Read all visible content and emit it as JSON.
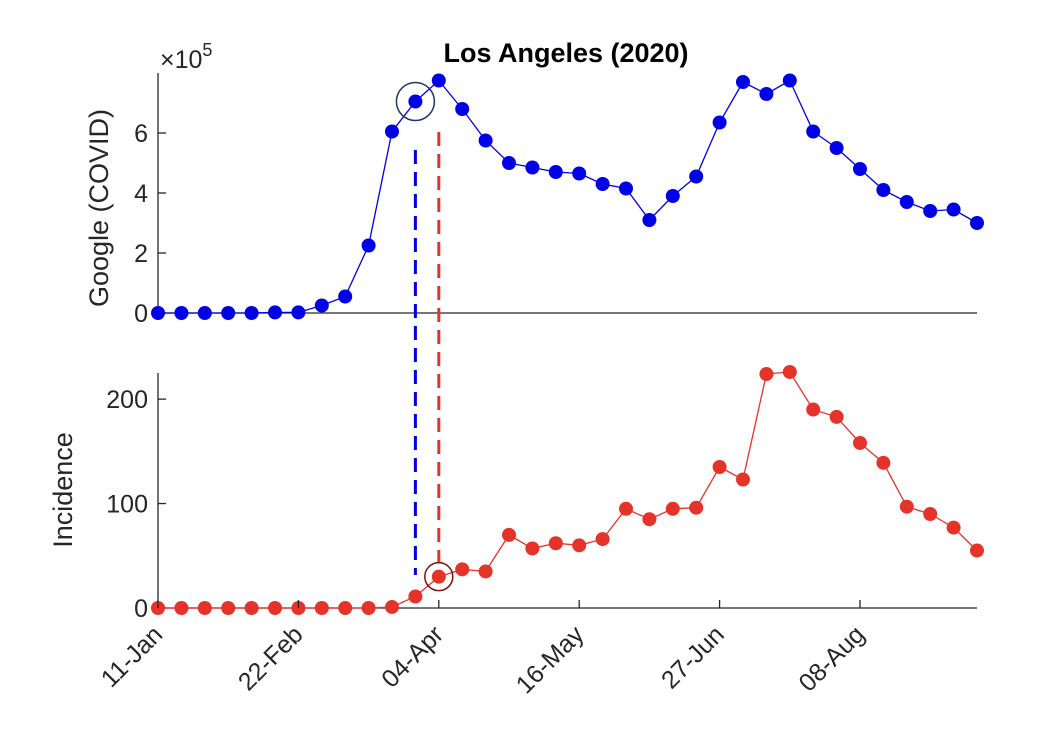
{
  "chart_data": {
    "type": "line",
    "title": "Los Angeles (2020)",
    "x_tick_labels": [
      "11-Jan",
      "22-Feb",
      "04-Apr",
      "16-May",
      "27-Jun",
      "08-Aug"
    ],
    "x_dates": [
      "11-Jan",
      "18-Jan",
      "25-Jan",
      "01-Feb",
      "08-Feb",
      "15-Feb",
      "22-Feb",
      "29-Feb",
      "07-Mar",
      "14-Mar",
      "21-Mar",
      "28-Mar",
      "04-Apr",
      "11-Apr",
      "18-Apr",
      "25-Apr",
      "02-May",
      "09-May",
      "16-May",
      "23-May",
      "30-May",
      "06-Jun",
      "13-Jun",
      "20-Jun",
      "27-Jun",
      "04-Jul",
      "11-Jul",
      "18-Jul",
      "25-Jul",
      "01-Aug",
      "08-Aug",
      "15-Aug",
      "22-Aug",
      "29-Aug",
      "05-Sep",
      "12-Sep"
    ],
    "panels": [
      {
        "series_color": "#0000e6",
        "ylabel": "Google (COVID)",
        "exponent_label": "×10",
        "exponent_power": "5",
        "ylim": [
          0,
          800000
        ],
        "yticks": [
          0,
          200000,
          400000,
          600000
        ],
        "ytick_labels": [
          "0",
          "2",
          "4",
          "6"
        ],
        "values": [
          0,
          0,
          0,
          0,
          0,
          2000,
          2000,
          25000,
          55000,
          225000,
          605000,
          705000,
          775000,
          680000,
          575000,
          500000,
          485000,
          470000,
          465000,
          430000,
          415000,
          310000,
          390000,
          455000,
          635000,
          770000,
          730000,
          775000,
          605000,
          550000,
          480000,
          410000,
          370000,
          340000,
          345000,
          300000
        ],
        "highlight_date": "28-Mar"
      },
      {
        "series_color": "#e6332a",
        "ylabel": "Incidence",
        "ylim": [
          0,
          225
        ],
        "yticks": [
          0,
          100,
          200
        ],
        "ytick_labels": [
          "0",
          "100",
          "200"
        ],
        "values": [
          0,
          0,
          0,
          0,
          0,
          0,
          0,
          0,
          0,
          0,
          1,
          11,
          30,
          37,
          35,
          70,
          57,
          62,
          60,
          66,
          95,
          85,
          95,
          96,
          135,
          123,
          224,
          226,
          190,
          183,
          158,
          139,
          97,
          90,
          77,
          55
        ],
        "highlight_date": "04-Apr"
      }
    ],
    "grid": false
  }
}
